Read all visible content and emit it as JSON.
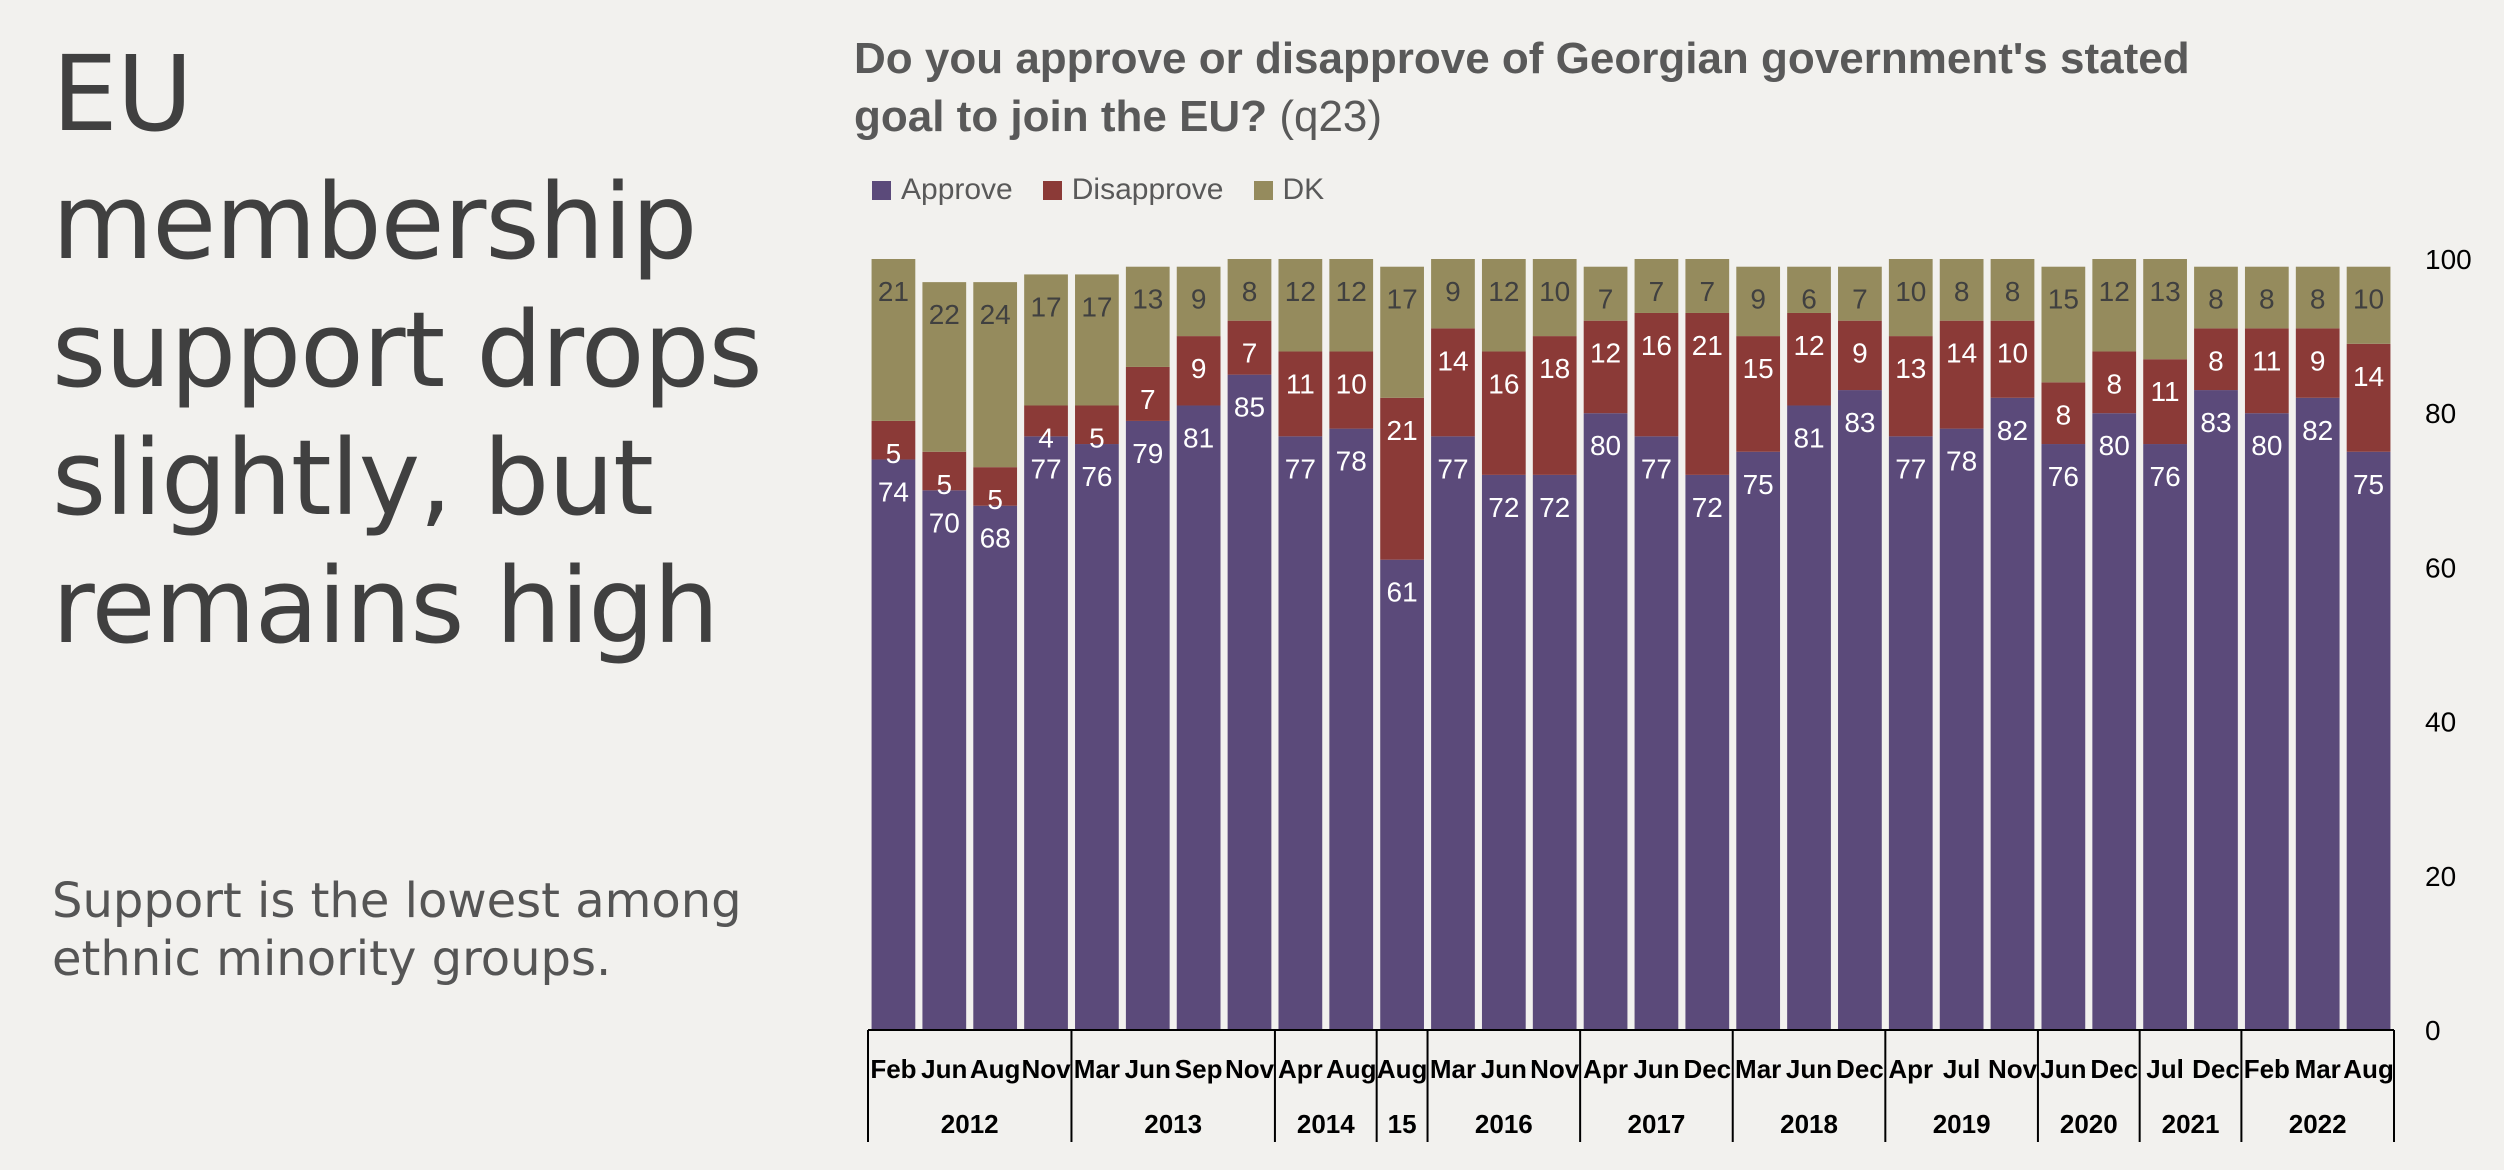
{
  "headline": "EU membership support drops slightly, but remains high",
  "subtext": "Support is the lowest among ethnic minority groups.",
  "chart_title": "Do you approve or disapprove of Georgian government's stated goal to join the EU?",
  "chart_title_code": "(q23)",
  "colors": {
    "approve": "#5b4a7a",
    "disapprove": "#8b3a37",
    "dk": "#958b5d",
    "background": "#f2f1ee"
  },
  "chart_data": {
    "type": "bar",
    "stacked": true,
    "categories": [
      "Feb",
      "Jun",
      "Aug",
      "Nov",
      "Mar",
      "Jun",
      "Sep",
      "Nov",
      "Apr",
      "Aug",
      "Aug",
      "Mar",
      "Jun",
      "Nov",
      "Apr",
      "Jun",
      "Dec",
      "Mar",
      "Jun",
      "Dec",
      "Apr",
      "Jul",
      "Nov",
      "Jun",
      "Dec",
      "Jul",
      "Dec",
      "Feb",
      "Mar",
      "Aug"
    ],
    "years": [
      {
        "label": "2012",
        "count": 4
      },
      {
        "label": "2013",
        "count": 4
      },
      {
        "label": "2014",
        "count": 2
      },
      {
        "label": "15",
        "count": 1
      },
      {
        "label": "2016",
        "count": 3
      },
      {
        "label": "2017",
        "count": 3
      },
      {
        "label": "2018",
        "count": 3
      },
      {
        "label": "2019",
        "count": 3
      },
      {
        "label": "2020",
        "count": 2
      },
      {
        "label": "2021",
        "count": 2
      },
      {
        "label": "2022",
        "count": 3
      }
    ],
    "series": [
      {
        "name": "Approve",
        "values": [
          74,
          70,
          68,
          77,
          76,
          79,
          81,
          85,
          77,
          78,
          61,
          77,
          72,
          72,
          80,
          77,
          72,
          75,
          81,
          83,
          77,
          78,
          82,
          76,
          80,
          76,
          83,
          80,
          82,
          75
        ]
      },
      {
        "name": "Disapprove",
        "values": [
          5,
          5,
          5,
          4,
          5,
          7,
          9,
          7,
          11,
          10,
          21,
          14,
          16,
          18,
          12,
          16,
          21,
          15,
          12,
          9,
          13,
          14,
          10,
          8,
          8,
          11,
          8,
          11,
          9,
          14
        ]
      },
      {
        "name": "DK",
        "values": [
          21,
          22,
          24,
          17,
          17,
          13,
          9,
          8,
          12,
          12,
          17,
          9,
          12,
          10,
          7,
          7,
          7,
          9,
          6,
          7,
          10,
          8,
          8,
          15,
          12,
          13,
          8,
          8,
          8,
          10
        ]
      }
    ],
    "ylim": [
      0,
      100
    ],
    "yticks": [
      0,
      20,
      40,
      60,
      80,
      100
    ],
    "legend_position": "top-left",
    "grid": false
  }
}
